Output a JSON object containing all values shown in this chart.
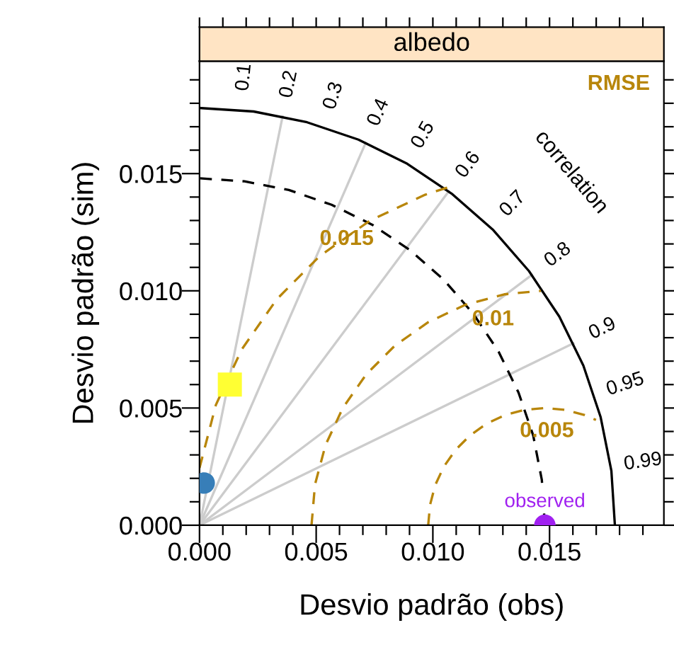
{
  "chart_data": {
    "type": "scatter",
    "title": "albedo",
    "xlabel": "Desvio padrão (obs)",
    "ylabel": "Desvio padrão (sim)",
    "xlim": [
      0,
      0.0199
    ],
    "ylim": [
      0,
      0.0198
    ],
    "xticks": [
      {
        "value": 0,
        "label": "0.000"
      },
      {
        "value": 0.001,
        "label": null
      },
      {
        "value": 0.002,
        "label": null
      },
      {
        "value": 0.003,
        "label": null
      },
      {
        "value": 0.004,
        "label": null
      },
      {
        "value": 0.005,
        "label": "0.005"
      },
      {
        "value": 0.006,
        "label": null
      },
      {
        "value": 0.007,
        "label": null
      },
      {
        "value": 0.008,
        "label": null
      },
      {
        "value": 0.009,
        "label": null
      },
      {
        "value": 0.01,
        "label": "0.010"
      },
      {
        "value": 0.011,
        "label": null
      },
      {
        "value": 0.012,
        "label": null
      },
      {
        "value": 0.013,
        "label": null
      },
      {
        "value": 0.014,
        "label": null
      },
      {
        "value": 0.015,
        "label": "0.015"
      },
      {
        "value": 0.016,
        "label": null
      },
      {
        "value": 0.017,
        "label": null
      },
      {
        "value": 0.018,
        "label": null
      },
      {
        "value": 0.019,
        "label": null
      }
    ],
    "yticks": [
      {
        "value": 0,
        "label": "0.000"
      },
      {
        "value": 0.001,
        "label": null
      },
      {
        "value": 0.002,
        "label": null
      },
      {
        "value": 0.003,
        "label": null
      },
      {
        "value": 0.004,
        "label": null
      },
      {
        "value": 0.005,
        "label": "0.005"
      },
      {
        "value": 0.006,
        "label": null
      },
      {
        "value": 0.007,
        "label": null
      },
      {
        "value": 0.008,
        "label": null
      },
      {
        "value": 0.009,
        "label": null
      },
      {
        "value": 0.01,
        "label": "0.010"
      },
      {
        "value": 0.011,
        "label": null
      },
      {
        "value": 0.012,
        "label": null
      },
      {
        "value": 0.013,
        "label": null
      },
      {
        "value": 0.014,
        "label": null
      },
      {
        "value": 0.015,
        "label": "0.015"
      },
      {
        "value": 0.016,
        "label": null
      },
      {
        "value": 0.017,
        "label": null
      },
      {
        "value": 0.018,
        "label": null
      },
      {
        "value": 0.019,
        "label": null
      }
    ],
    "grid": false,
    "legend": false,
    "series": [
      {
        "type": "line",
        "color": "#cccccc",
        "line_style": "solid",
        "marker": "none",
        "x": [
          0,
          0.00356
        ],
        "values": [
          0,
          0.01744
        ]
      },
      {
        "type": "line",
        "color": "#cccccc",
        "line_style": "solid",
        "marker": "none",
        "x": [
          0,
          0.00712
        ],
        "values": [
          0,
          0.01631
        ]
      },
      {
        "type": "line",
        "color": "#cccccc",
        "line_style": "solid",
        "marker": "none",
        "x": [
          0,
          0.01068
        ],
        "values": [
          0,
          0.01424
        ]
      },
      {
        "type": "line",
        "color": "#cccccc",
        "line_style": "solid",
        "marker": "none",
        "x": [
          0,
          0.01424
        ],
        "values": [
          0,
          0.01068
        ]
      },
      {
        "type": "line",
        "color": "#cccccc",
        "line_style": "solid",
        "marker": "none",
        "x": [
          0,
          0.01602
        ],
        "values": [
          0,
          0.00776
        ]
      },
      {
        "type": "line",
        "color": "#000000",
        "line_style": "solid",
        "marker": "none",
        "x": [
          0.0178,
          0.01765,
          0.01719,
          0.01645,
          0.01542,
          0.01412,
          0.01259,
          0.01084,
          0.0089,
          0.00681,
          0.00461,
          0.00232,
          0
        ],
        "values": [
          0,
          0.00232,
          0.00461,
          0.00681,
          0.0089,
          0.01084,
          0.01259,
          0.01412,
          0.01542,
          0.01645,
          0.01719,
          0.01765,
          0.0178
        ]
      },
      {
        "type": "line",
        "color": "#000000",
        "line_style": "dashed",
        "marker": "none",
        "x": [
          0.0148,
          0.01467,
          0.0143,
          0.01367,
          0.01282,
          0.01174,
          0.01047,
          0.00901,
          0.0074,
          0.00566,
          0.00383,
          0.00193,
          0
        ],
        "values": [
          0,
          0.00193,
          0.00383,
          0.00566,
          0.0074,
          0.00901,
          0.01047,
          0.01174,
          0.01282,
          0.01367,
          0.0143,
          0.01467,
          0.0148
        ]
      },
      {
        "type": "line",
        "color": "#b8860b",
        "line_style": "dashed",
        "marker": "none",
        "x": [
          0.0098,
          0.00988,
          0.0101,
          0.01047,
          0.01097,
          0.01159,
          0.0123,
          0.01309,
          0.01393,
          0.0148,
          0.01567,
          0.01651,
          0.01699
        ],
        "values": [
          0,
          0.00087,
          0.00171,
          0.0025,
          0.00321,
          0.00383,
          0.00433,
          0.0047,
          0.00492,
          0.005,
          0.00492,
          0.0047,
          0.00449
        ]
      },
      {
        "type": "line",
        "color": "#b8860b",
        "line_style": "dashed",
        "marker": "none",
        "x": [
          0.0048,
          0.00495,
          0.0054,
          0.00614,
          0.00714,
          0.00837,
          0.0098,
          0.01138,
          0.01306,
          0.01463
        ],
        "values": [
          0,
          0.00174,
          0.00342,
          0.005,
          0.00643,
          0.00766,
          0.00866,
          0.0094,
          0.00985,
          0.01
        ]
      },
      {
        "type": "line",
        "color": "#b8860b",
        "line_style": "dashed",
        "marker": "none",
        "x": [
          0,
          0.0007,
          0.00181,
          0.00331,
          0.00516,
          0.0073,
          0.00967,
          0.01067
        ],
        "values": [
          0.00244,
          0.00513,
          0.0075,
          0.00964,
          0.01149,
          0.01299,
          0.0141,
          0.01442
        ]
      },
      {
        "color": "#ffff33",
        "marker": "square",
        "x": [
          0.0013
        ],
        "values": [
          0.006
        ]
      },
      {
        "color": "#377eb8",
        "marker": "circle",
        "x": [
          0.0002
        ],
        "values": [
          0.0018
        ]
      },
      {
        "name": "observed",
        "color": "#a020f0",
        "marker": "circle",
        "x": [
          0.0148
        ],
        "values": [
          0
        ]
      }
    ],
    "annotations": [
      "RMSE",
      "correlation",
      "0.1",
      "0.2",
      "0.3",
      "0.4",
      "0.5",
      "0.6",
      "0.7",
      "0.8",
      "0.9",
      "0.95",
      "0.99",
      "0.015",
      "0.01",
      "0.005"
    ]
  }
}
